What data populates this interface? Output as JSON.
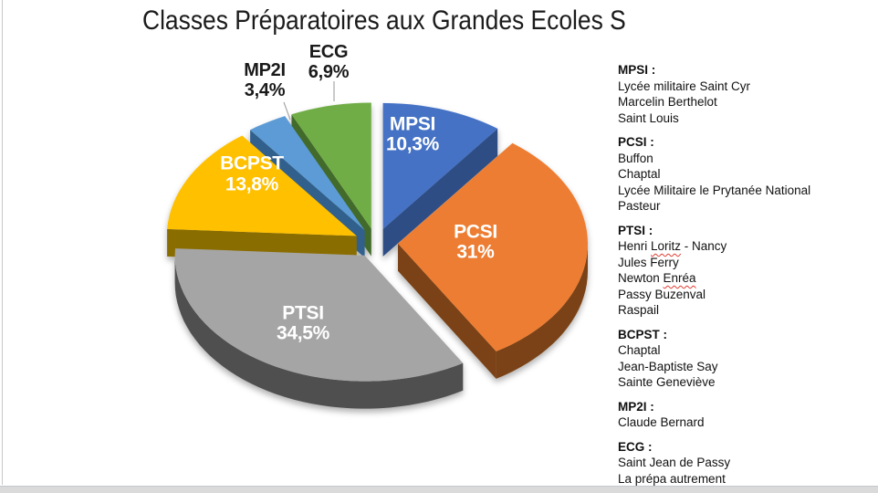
{
  "frame": {
    "left_edge_color": "#c9c9c9",
    "bottom_bar_color": "#dadada",
    "background_color": "#ffffff"
  },
  "chart_data": {
    "type": "pie",
    "style": "3d-exploded",
    "title": "Classes Préparatoires aux Grandes Ecoles S",
    "unit": "%",
    "start_angle_deg": 0,
    "direction": "clockwise",
    "legend_position": "right-text-block",
    "slices": [
      {
        "label": "MPSI",
        "value": 10.3,
        "pct_label": "10,3%",
        "color": "#4472C4",
        "dark": "#2e4d85",
        "label_inside": true
      },
      {
        "label": "PCSI",
        "value": 31.0,
        "pct_label": "31%",
        "color": "#ED7D31",
        "dark": "#7a4316",
        "label_inside": true
      },
      {
        "label": "PTSI",
        "value": 34.5,
        "pct_label": "34,5%",
        "color": "#A5A5A5",
        "dark": "#4f4f4f",
        "label_inside": true
      },
      {
        "label": "BCPST",
        "value": 13.8,
        "pct_label": "13,8%",
        "color": "#FFC000",
        "dark": "#8a6d00",
        "label_inside": true
      },
      {
        "label": "MP2I",
        "value": 3.4,
        "pct_label": "3,4%",
        "color": "#5B9BD5",
        "dark": "#33618c",
        "label_inside": false
      },
      {
        "label": "ECG",
        "value": 6.9,
        "pct_label": "6,9%",
        "color": "#70AD47",
        "dark": "#436a2a",
        "label_inside": false
      }
    ],
    "inside_label_color": "#ffffff",
    "outside_label_color": "#1a1a1a",
    "leader_line_color": "#a6a6a6"
  },
  "legend": {
    "groups": [
      {
        "title": "MPSI :",
        "items": [
          {
            "text": "Lycée militaire Saint Cyr"
          },
          {
            "text": "Marcelin Berthelot"
          },
          {
            "text": "Saint Louis"
          }
        ]
      },
      {
        "title": "PCSI :",
        "items": [
          {
            "text": "Buffon"
          },
          {
            "text": "Chaptal"
          },
          {
            "text": "Lycée Militaire le Prytanée National"
          },
          {
            "text": "Pasteur"
          }
        ]
      },
      {
        "title": "PTSI :",
        "items": [
          {
            "text": "Henri Loritz - Nancy",
            "misspelled": "Loritz"
          },
          {
            "text": "Jules Ferry"
          },
          {
            "text": "Newton Enréa",
            "misspelled": "Enréa"
          },
          {
            "text": "Passy Buzenval"
          },
          {
            "text": "Raspail"
          }
        ]
      },
      {
        "title": "BCPST :",
        "items": [
          {
            "text": "Chaptal"
          },
          {
            "text": "Jean-Baptiste Say"
          },
          {
            "text": "Sainte Geneviève"
          }
        ]
      },
      {
        "title": "MP2I :",
        "items": [
          {
            "text": "Claude Bernard"
          }
        ]
      },
      {
        "title": "ECG :",
        "items": [
          {
            "text": "Saint Jean de Passy"
          },
          {
            "text": "La prépa autrement"
          }
        ]
      }
    ]
  }
}
